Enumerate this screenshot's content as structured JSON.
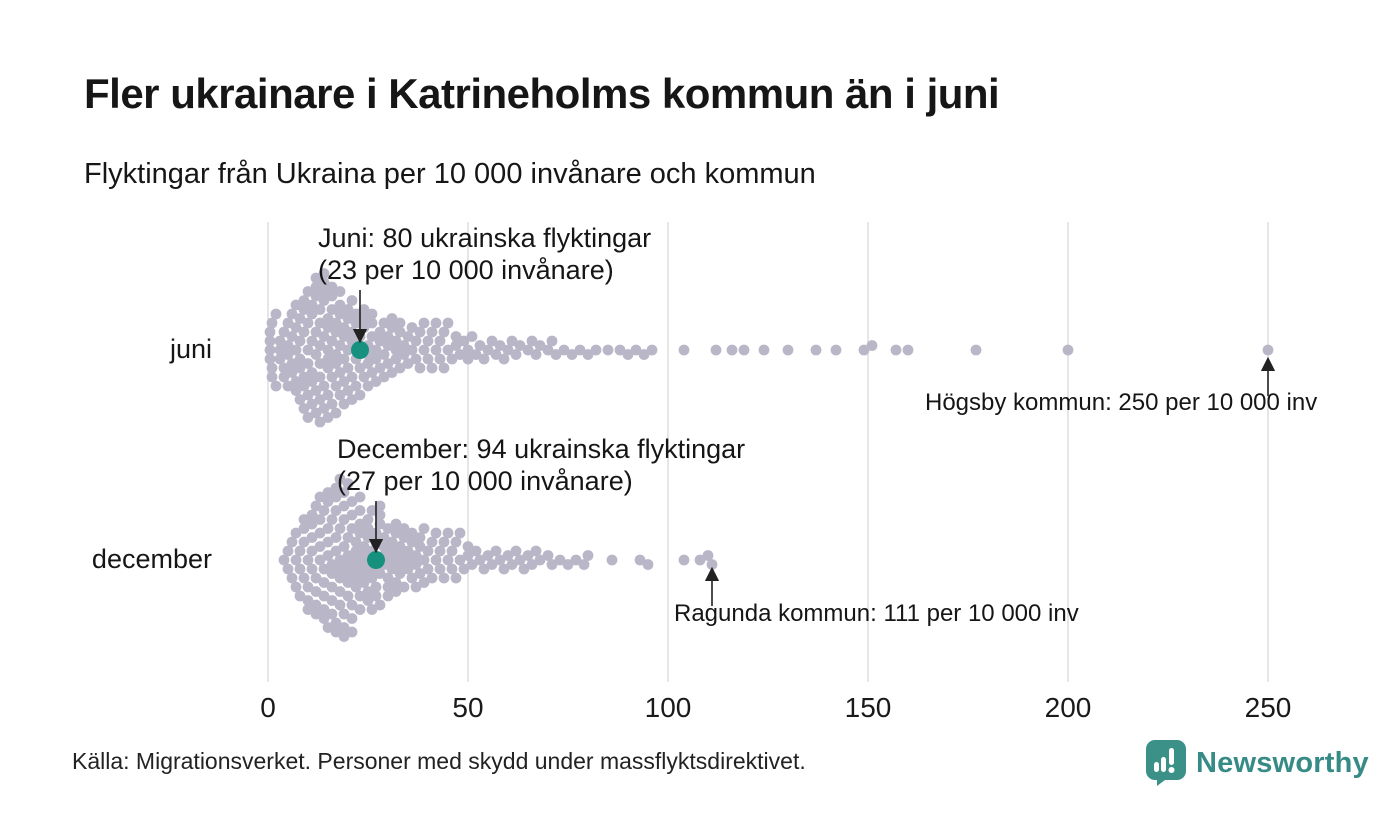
{
  "header": {
    "title": "Fler ukrainare i Katrineholms kommun än i juni",
    "subtitle": "Flyktingar från Ukraina per 10 000 invånare och kommun"
  },
  "footer": {
    "source": "Källa: Migrationsverket. Personer med skydd under massflyktsdirektivet.",
    "brand": "Newsworthy"
  },
  "chart_data": {
    "type": "beeswarm",
    "xlabel": "Flyktingar från Ukraina per 10 000 invånare",
    "x_range": [
      0,
      250
    ],
    "x_ticks": [
      0,
      50,
      100,
      150,
      200,
      250
    ],
    "grid": true,
    "colors": {
      "dot": "#b9b6c8",
      "highlight": "#169180",
      "gridline": "#d9d9d9",
      "arrow": "#222222",
      "brand_teal": "#378b87"
    },
    "rows": [
      {
        "id": "juni",
        "label": "juni",
        "highlight": {
          "value": 23,
          "municipality": "Katrineholms kommun"
        },
        "annotation": {
          "line1": "Juni: 80 ukrainska flyktingar",
          "line2": "(23 per 10 000 invånare)"
        },
        "outlier_annotation": {
          "text": "Högsby kommun: 250 per 10 000 inv",
          "value": 250
        },
        "values_rle": [
          [
            0.5,
            4
          ],
          [
            1,
            3
          ],
          [
            2,
            2
          ],
          [
            3,
            3
          ],
          [
            4,
            3
          ],
          [
            5,
            4
          ],
          [
            6,
            4
          ],
          [
            7,
            5
          ],
          [
            8,
            5
          ],
          [
            9,
            6
          ],
          [
            10,
            6
          ],
          [
            11,
            6
          ],
          [
            12,
            7
          ],
          [
            13,
            7
          ],
          [
            14,
            7
          ],
          [
            15,
            7
          ],
          [
            16,
            6
          ],
          [
            17,
            6
          ],
          [
            18,
            6
          ],
          [
            19,
            5
          ],
          [
            20,
            5
          ],
          [
            21,
            5
          ],
          [
            22,
            4
          ],
          [
            23,
            3
          ],
          [
            24,
            4
          ],
          [
            25,
            4
          ],
          [
            26,
            4
          ],
          [
            27,
            3
          ],
          [
            28,
            3
          ],
          [
            29,
            3
          ],
          [
            30,
            3
          ],
          [
            31,
            3
          ],
          [
            32,
            3
          ],
          [
            33,
            3
          ],
          [
            34,
            2
          ],
          [
            35,
            2
          ],
          [
            36,
            2
          ],
          [
            37,
            2
          ],
          [
            38,
            2
          ],
          [
            39,
            2
          ],
          [
            40,
            2
          ],
          [
            41,
            2
          ],
          [
            42,
            2
          ],
          [
            43,
            2
          ],
          [
            44,
            2
          ],
          [
            45,
            2
          ],
          [
            46,
            1
          ],
          [
            47,
            2
          ],
          [
            48,
            1
          ],
          [
            49,
            1
          ],
          [
            50,
            2
          ],
          [
            51,
            1
          ],
          [
            52,
            1
          ],
          [
            53,
            1
          ],
          [
            54,
            1
          ],
          [
            55,
            1
          ],
          [
            56,
            1
          ],
          [
            57,
            1
          ],
          [
            58,
            1
          ],
          [
            59,
            1
          ],
          [
            60,
            1
          ],
          [
            61,
            1
          ],
          [
            62,
            1
          ],
          [
            63,
            1
          ],
          [
            65,
            1
          ],
          [
            66,
            1
          ],
          [
            67,
            1
          ],
          [
            68,
            1
          ],
          [
            70,
            1
          ],
          [
            71,
            1
          ],
          [
            72,
            1
          ],
          [
            74,
            1
          ],
          [
            76,
            1
          ],
          [
            78,
            1
          ],
          [
            80,
            1
          ],
          [
            82,
            1
          ],
          [
            85,
            1
          ],
          [
            88,
            1
          ],
          [
            90,
            1
          ],
          [
            92,
            1
          ],
          [
            94,
            1
          ],
          [
            96,
            1
          ],
          [
            104,
            1
          ],
          [
            112,
            1
          ],
          [
            116,
            1
          ],
          [
            119,
            1
          ],
          [
            124,
            1
          ],
          [
            130,
            1
          ],
          [
            137,
            1
          ],
          [
            142,
            1
          ],
          [
            149,
            1
          ],
          [
            151,
            1
          ],
          [
            157,
            1
          ],
          [
            160,
            1
          ],
          [
            177,
            1
          ],
          [
            200,
            1
          ],
          [
            250,
            1
          ]
        ]
      },
      {
        "id": "december",
        "label": "december",
        "highlight": {
          "value": 27,
          "municipality": "Katrineholms kommun"
        },
        "annotation": {
          "line1": "December: 94 ukrainska flyktingar",
          "line2": "(27 per 10 000 invånare)"
        },
        "outlier_annotation": {
          "text": "Ragunda kommun: 111 per 10 000 inv",
          "value": 111
        },
        "values_rle": [
          [
            4,
            1
          ],
          [
            5,
            2
          ],
          [
            6,
            2
          ],
          [
            7,
            3
          ],
          [
            8,
            3
          ],
          [
            9,
            4
          ],
          [
            10,
            4
          ],
          [
            11,
            5
          ],
          [
            12,
            5
          ],
          [
            13,
            5
          ],
          [
            14,
            6
          ],
          [
            15,
            6
          ],
          [
            16,
            6
          ],
          [
            17,
            7
          ],
          [
            18,
            7
          ],
          [
            19,
            7
          ],
          [
            20,
            7
          ],
          [
            21,
            6
          ],
          [
            22,
            6
          ],
          [
            23,
            6
          ],
          [
            24,
            5
          ],
          [
            25,
            5
          ],
          [
            26,
            5
          ],
          [
            27,
            4
          ],
          [
            28,
            5
          ],
          [
            29,
            4
          ],
          [
            30,
            4
          ],
          [
            31,
            4
          ],
          [
            32,
            4
          ],
          [
            33,
            4
          ],
          [
            34,
            3
          ],
          [
            35,
            3
          ],
          [
            36,
            3
          ],
          [
            37,
            3
          ],
          [
            38,
            3
          ],
          [
            39,
            3
          ],
          [
            40,
            2
          ],
          [
            41,
            2
          ],
          [
            42,
            2
          ],
          [
            43,
            2
          ],
          [
            44,
            2
          ],
          [
            45,
            2
          ],
          [
            46,
            2
          ],
          [
            47,
            2
          ],
          [
            48,
            2
          ],
          [
            49,
            1
          ],
          [
            50,
            2
          ],
          [
            51,
            1
          ],
          [
            52,
            1
          ],
          [
            53,
            1
          ],
          [
            54,
            1
          ],
          [
            55,
            1
          ],
          [
            56,
            1
          ],
          [
            57,
            1
          ],
          [
            58,
            1
          ],
          [
            59,
            1
          ],
          [
            60,
            1
          ],
          [
            61,
            1
          ],
          [
            62,
            1
          ],
          [
            63,
            1
          ],
          [
            64,
            1
          ],
          [
            65,
            1
          ],
          [
            66,
            1
          ],
          [
            67,
            1
          ],
          [
            68,
            1
          ],
          [
            70,
            1
          ],
          [
            71,
            1
          ],
          [
            73,
            1
          ],
          [
            75,
            1
          ],
          [
            77,
            1
          ],
          [
            79,
            1
          ],
          [
            80,
            1
          ],
          [
            86,
            1
          ],
          [
            93,
            1
          ],
          [
            95,
            1
          ],
          [
            104,
            1
          ],
          [
            108,
            1
          ],
          [
            110,
            1
          ],
          [
            111,
            1
          ]
        ]
      }
    ]
  }
}
